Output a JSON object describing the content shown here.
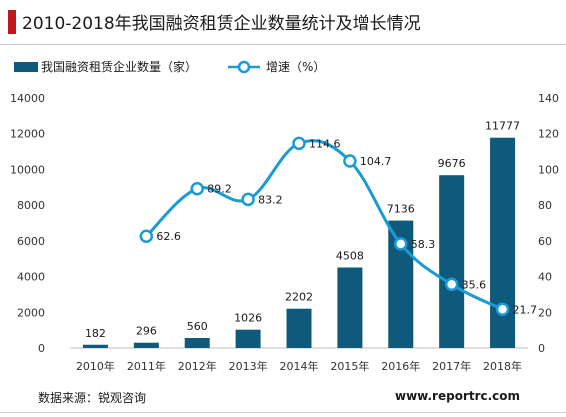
{
  "title": "2010-2018年我国融资租赁企业数量统计及增长情况",
  "source": "数据来源：锐观咨询",
  "website": "www.reportrc.com",
  "colors": {
    "bar": "#0f5a7a",
    "line": "#1a9bd6",
    "accent": "#c0161d"
  },
  "chart_data": {
    "type": "bar",
    "categories": [
      "2010年",
      "2011年",
      "2012年",
      "2013年",
      "2014年",
      "2015年",
      "2016年",
      "2017年",
      "2018年"
    ],
    "series": [
      {
        "name": "我国融资租赁企业数量（家）",
        "type": "bar",
        "axis": "left",
        "values": [
          182,
          296,
          560,
          1026,
          2202,
          4508,
          7136,
          9676,
          11777
        ],
        "labels": [
          "182",
          "296",
          "560",
          "1026",
          "2202",
          "4508",
          "7136",
          "9676",
          "11777"
        ]
      },
      {
        "name": "增速（%）",
        "type": "line",
        "axis": "right",
        "values": [
          null,
          62.6,
          89.2,
          83.2,
          114.6,
          104.7,
          58.3,
          35.6,
          21.7
        ],
        "labels": [
          "",
          "62.6",
          "89.2",
          "83.2",
          "114.6",
          "104.7",
          "58.3",
          "35.6",
          "21.7"
        ]
      }
    ],
    "y_left": {
      "ylim": [
        0,
        14000
      ],
      "ticks": [
        "0",
        "2000",
        "4000",
        "6000",
        "8000",
        "10000",
        "12000",
        "14000"
      ]
    },
    "y_right": {
      "ylim": [
        0,
        140
      ],
      "ticks": [
        "0",
        "20",
        "40",
        "60",
        "80",
        "100",
        "120",
        "140"
      ]
    },
    "legend_placement": "top-left",
    "grid": false
  }
}
